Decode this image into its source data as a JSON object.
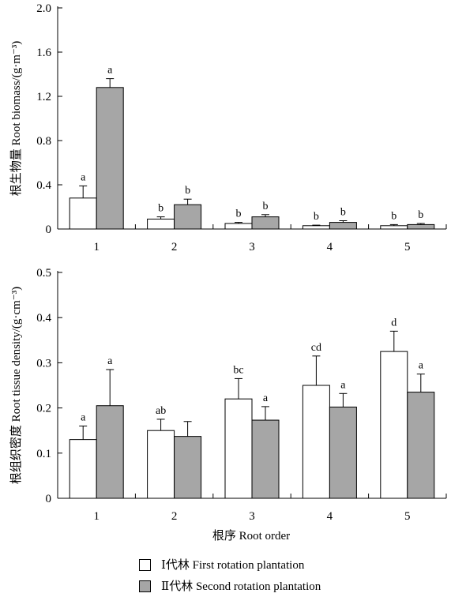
{
  "colors": {
    "first_rotation": "#ffffff",
    "second_rotation": "#a6a6a6",
    "axis": "#000000"
  },
  "xlabel": "根序 Root order",
  "legend": [
    {
      "label": "Ⅰ代林 First rotation plantation",
      "color": "#ffffff"
    },
    {
      "label": "Ⅱ代林 Second rotation plantation",
      "color": "#a6a6a6"
    }
  ],
  "chart_data": [
    {
      "type": "bar",
      "ylabel": "根生物量 Root biomass/(g·m⁻³)",
      "xlabel": "",
      "categories": [
        "1",
        "2",
        "3",
        "4",
        "5"
      ],
      "ylim": [
        0,
        2.0
      ],
      "yticks": [
        "0",
        "0.4",
        "0.8",
        "1.2",
        "1.6",
        "2.0"
      ],
      "ytick_values": [
        0,
        0.4,
        0.8,
        1.2,
        1.6,
        2.0
      ],
      "series": [
        {
          "values": [
            0.28,
            0.09,
            0.05,
            0.03,
            0.03
          ],
          "errors": [
            0.11,
            0.02,
            0.01,
            0.005,
            0.01
          ],
          "labels": [
            "a",
            "b",
            "b",
            "b",
            "b"
          ],
          "color": "#ffffff"
        },
        {
          "values": [
            1.28,
            0.22,
            0.11,
            0.06,
            0.04
          ],
          "errors": [
            0.08,
            0.05,
            0.02,
            0.015,
            0.01
          ],
          "labels": [
            "a",
            "b",
            "b",
            "b",
            "b"
          ],
          "color": "#a6a6a6"
        }
      ]
    },
    {
      "type": "bar",
      "ylabel": "根组织密度 Root tissue density/(g·cm⁻³)",
      "xlabel": "",
      "categories": [
        "1",
        "2",
        "3",
        "4",
        "5"
      ],
      "ylim": [
        0,
        0.5
      ],
      "yticks": [
        "0",
        "0.1",
        "0.2",
        "0.3",
        "0.4",
        "0.5"
      ],
      "ytick_values": [
        0,
        0.1,
        0.2,
        0.3,
        0.4,
        0.5
      ],
      "series": [
        {
          "values": [
            0.13,
            0.15,
            0.22,
            0.25,
            0.325
          ],
          "errors": [
            0.03,
            0.025,
            0.045,
            0.065,
            0.045
          ],
          "labels": [
            "a",
            "ab",
            "bc",
            "cd",
            "d"
          ],
          "color": "#ffffff"
        },
        {
          "values": [
            0.205,
            0.137,
            0.173,
            0.202,
            0.235
          ],
          "errors": [
            0.08,
            0.033,
            0.03,
            0.03,
            0.04
          ],
          "labels": [
            "a",
            "",
            "a",
            "a",
            "a"
          ],
          "color": "#a6a6a6"
        }
      ]
    }
  ]
}
